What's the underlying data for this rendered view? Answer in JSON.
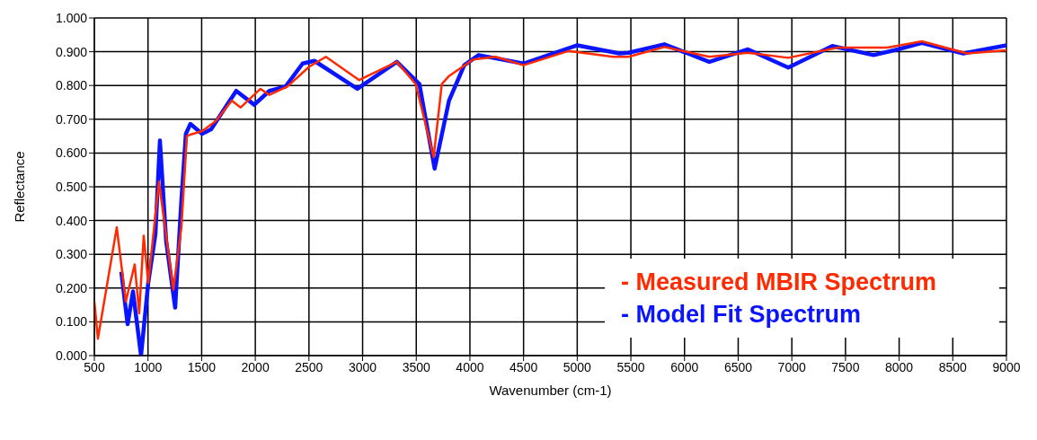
{
  "chart_data": {
    "type": "line",
    "xlabel": "Wavenumber (cm-1)",
    "ylabel": "Reflectance",
    "xlim": [
      500,
      9000
    ],
    "xticks": [
      500,
      1000,
      1500,
      2000,
      2500,
      3000,
      3500,
      4000,
      4500,
      5000,
      5500,
      6000,
      6500,
      7000,
      7500,
      8000,
      8500,
      9000
    ],
    "ylim": [
      0,
      1
    ],
    "yticks": [
      {
        "value": 0,
        "label": "0.000"
      },
      {
        "value": 0.1,
        "label": "0.100"
      },
      {
        "value": 0.2,
        "label": "0.200"
      },
      {
        "value": 0.3,
        "label": "0.300"
      },
      {
        "value": 0.4,
        "label": "0.400"
      },
      {
        "value": 0.5,
        "label": "0.500"
      },
      {
        "value": 0.6,
        "label": "0.600"
      },
      {
        "value": 0.7,
        "label": "0.700"
      },
      {
        "value": 0.8,
        "label": "0.800"
      },
      {
        "value": 0.9,
        "label": "0.900"
      },
      {
        "value": 1,
        "label": "1.000"
      }
    ],
    "grid": true,
    "legend": "bottom right",
    "marker": "none",
    "line_style": "solid",
    "series": [
      {
        "name": "- Measured MBIR Spectrum",
        "color": "#ff2a00",
        "x": [
          500,
          533,
          709,
          793,
          876,
          918,
          960,
          1002,
          1102,
          1236,
          1311,
          1362,
          1400,
          1504,
          1630,
          1780,
          1864,
          2048,
          2131,
          2299,
          2500,
          2658,
          2968,
          3319,
          3495,
          3662,
          3738,
          3805,
          4030,
          4240,
          4499,
          4917,
          5336,
          5478,
          5812,
          6231,
          6591,
          6967,
          7427,
          7890,
          8213,
          8632,
          9000
        ],
        "values": [
          0.16,
          0.05,
          0.38,
          0.16,
          0.27,
          0.125,
          0.355,
          0.215,
          0.515,
          0.195,
          0.38,
          0.65,
          0.655,
          0.665,
          0.694,
          0.755,
          0.735,
          0.79,
          0.772,
          0.797,
          0.855,
          0.885,
          0.816,
          0.87,
          0.804,
          0.588,
          0.804,
          0.828,
          0.877,
          0.885,
          0.86,
          0.902,
          0.885,
          0.885,
          0.914,
          0.885,
          0.897,
          0.882,
          0.912,
          0.912,
          0.931,
          0.895,
          0.904
        ]
      },
      {
        "name": "- Model Fit Spectrum",
        "color": "#0a14ff",
        "x": [
          751,
          810,
          860,
          935,
          1002,
          1069,
          1111,
          1169,
          1253,
          1311,
          1353,
          1395,
          1504,
          1588,
          1822,
          1990,
          2131,
          2282,
          2441,
          2550,
          2951,
          3319,
          3529,
          3671,
          3805,
          3947,
          4081,
          4499,
          5001,
          5394,
          5478,
          5812,
          6231,
          6591,
          6967,
          7377,
          7762,
          7988,
          8213,
          8598,
          9000
        ],
        "values": [
          0.248,
          0.093,
          0.19,
          0.0,
          0.215,
          0.36,
          0.637,
          0.34,
          0.142,
          0.46,
          0.657,
          0.686,
          0.657,
          0.67,
          0.784,
          0.743,
          0.784,
          0.797,
          0.865,
          0.873,
          0.79,
          0.87,
          0.804,
          0.554,
          0.755,
          0.86,
          0.89,
          0.865,
          0.919,
          0.895,
          0.897,
          0.922,
          0.87,
          0.907,
          0.853,
          0.917,
          0.89,
          0.907,
          0.926,
          0.895,
          0.919
        ]
      }
    ]
  }
}
